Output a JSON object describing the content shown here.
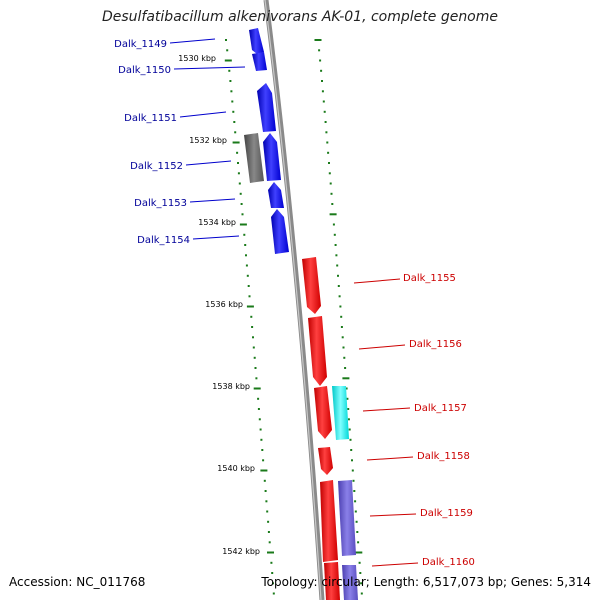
{
  "title": "Desulfatibacillum alkenivorans AK-01, complete genome",
  "accession": "Accession: NC_011768",
  "topology": "Topology: circular; Length: 6,517,073 bp; Genes: 5,314",
  "colors": {
    "forward_gene": "#0000ff",
    "reverse_gene": "#ff0000",
    "forward_label": "#000099",
    "reverse_label": "#cc0000",
    "tick": "#1a7a1a",
    "backbone": "#8a8a8a",
    "gray_feature": "#666666",
    "cyan_feature": "#00ffff",
    "violet_feature": "#6a5acd"
  },
  "position_labels": [
    {
      "text": "1530 kbp",
      "kbp": 1530
    },
    {
      "text": "1532 kbp",
      "kbp": 1532
    },
    {
      "text": "1534 kbp",
      "kbp": 1534
    },
    {
      "text": "1536 kbp",
      "kbp": 1536
    },
    {
      "text": "1538 kbp",
      "kbp": 1538
    },
    {
      "text": "1540 kbp",
      "kbp": 1540
    },
    {
      "text": "1542 kbp",
      "kbp": 1542
    }
  ],
  "forward_genes": [
    {
      "name": "Dalk_1149"
    },
    {
      "name": "Dalk_1150"
    },
    {
      "name": "Dalk_1151"
    },
    {
      "name": "Dalk_1152"
    },
    {
      "name": "Dalk_1153"
    },
    {
      "name": "Dalk_1154"
    }
  ],
  "reverse_genes": [
    {
      "name": "Dalk_1155"
    },
    {
      "name": "Dalk_1156"
    },
    {
      "name": "Dalk_1157"
    },
    {
      "name": "Dalk_1158"
    },
    {
      "name": "Dalk_1159"
    },
    {
      "name": "Dalk_1160"
    }
  ]
}
